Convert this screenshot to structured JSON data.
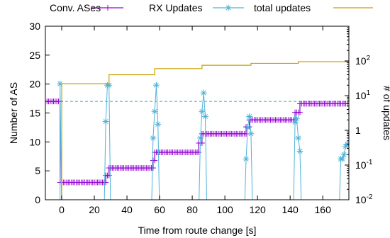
{
  "chart_data": {
    "type": "line",
    "title": "",
    "xlabel": "Time from route change [s]",
    "ylabel": "Number of AS",
    "y2label": "# of updates",
    "xlim": [
      -10,
      176
    ],
    "ylim": [
      0,
      30
    ],
    "y2scale": "log",
    "y2lim": [
      0.01,
      1000
    ],
    "xticks": [
      "0",
      "20",
      "40",
      "60",
      "80",
      "100",
      "120",
      "140",
      "160"
    ],
    "xtick_values": [
      0,
      20,
      40,
      60,
      80,
      100,
      120,
      140,
      160
    ],
    "yticks": [
      "0",
      "5",
      "10",
      "15",
      "20",
      "25",
      "30"
    ],
    "ytick_values": [
      0,
      5,
      10,
      15,
      20,
      25,
      30
    ],
    "y2ticks": [
      {
        "base": "10",
        "exp": "-2",
        "value": 0.01
      },
      {
        "base": "10",
        "exp": "-1",
        "value": 0.1
      },
      {
        "base": "1",
        "exp": "",
        "value": 1
      },
      {
        "base": "10",
        "exp": "1",
        "value": 10
      },
      {
        "base": "10",
        "exp": "2",
        "value": 100
      }
    ],
    "grid": false,
    "legend_position": "top",
    "series": [
      {
        "name": "Conv. ASes",
        "axis": "left",
        "color": "#9400d3",
        "marker": "plus",
        "steps": [
          {
            "x0": -10,
            "x1": -1,
            "y": 17
          },
          {
            "x0": -1,
            "x1": 27,
            "y": 3
          },
          {
            "x0": 27,
            "x1": 29,
            "y": 4.2
          },
          {
            "x0": 29,
            "x1": 56,
            "y": 5.5
          },
          {
            "x0": 56,
            "x1": 57,
            "y": 6.8
          },
          {
            "x0": 57,
            "x1": 84,
            "y": 8.2
          },
          {
            "x0": 84,
            "x1": 86,
            "y": 9.8
          },
          {
            "x0": 86,
            "x1": 113,
            "y": 11.4
          },
          {
            "x0": 113,
            "x1": 115,
            "y": 12.6
          },
          {
            "x0": 115,
            "x1": 143,
            "y": 13.8
          },
          {
            "x0": 143,
            "x1": 146,
            "y": 15.1
          },
          {
            "x0": 146,
            "x1": 176,
            "y": 16.6
          }
        ]
      },
      {
        "name": "RX Updates",
        "axis": "right",
        "color": "#4fb3d9",
        "marker": "asterisk",
        "points": [
          [
            -1,
            0.001
          ],
          [
            -1,
            22
          ],
          [
            0,
            0.001
          ],
          [
            26,
            0.001
          ],
          [
            27,
            1.8
          ],
          [
            28,
            20
          ],
          [
            29,
            20
          ],
          [
            30,
            0.001
          ],
          [
            55,
            0.001
          ],
          [
            56,
            0.6
          ],
          [
            57,
            3.5
          ],
          [
            58,
            20
          ],
          [
            59,
            1.5
          ],
          [
            60,
            0.001
          ],
          [
            84,
            0.001
          ],
          [
            85,
            0.6
          ],
          [
            86,
            3.5
          ],
          [
            87,
            12
          ],
          [
            88,
            2.5
          ],
          [
            89,
            0.001
          ],
          [
            112,
            0.001
          ],
          [
            113,
            0.15
          ],
          [
            114,
            1.2
          ],
          [
            115,
            2.5
          ],
          [
            116,
            0.8
          ],
          [
            117,
            0.001
          ],
          [
            142,
            0.001
          ],
          [
            143,
            1.7
          ],
          [
            144,
            2.2
          ],
          [
            145,
            0.6
          ],
          [
            146,
            0.25
          ],
          [
            147,
            0.001
          ],
          [
            170,
            0.001
          ],
          [
            171,
            0.15
          ],
          [
            172,
            0.15
          ],
          [
            173,
            0.2
          ],
          [
            174,
            0.35
          ],
          [
            175,
            0.4
          ],
          [
            176,
            0.4
          ]
        ]
      },
      {
        "name": "total updates",
        "axis": "right",
        "color": "#c9a000",
        "marker": "none",
        "steps": [
          {
            "x0": -1,
            "x1": 0,
            "y": 0.001
          },
          {
            "x0": 0,
            "x1": 29,
            "y": 22
          },
          {
            "x0": 29,
            "x1": 57,
            "y": 40
          },
          {
            "x0": 57,
            "x1": 86,
            "y": 60
          },
          {
            "x0": 86,
            "x1": 116,
            "y": 75
          },
          {
            "x0": 116,
            "x1": 145,
            "y": 85
          },
          {
            "x0": 145,
            "x1": 176,
            "y": 95
          }
        ]
      }
    ],
    "reference_line": {
      "axis": "left",
      "y": 17,
      "style": "dashed",
      "color": "#4fb3d9"
    }
  }
}
